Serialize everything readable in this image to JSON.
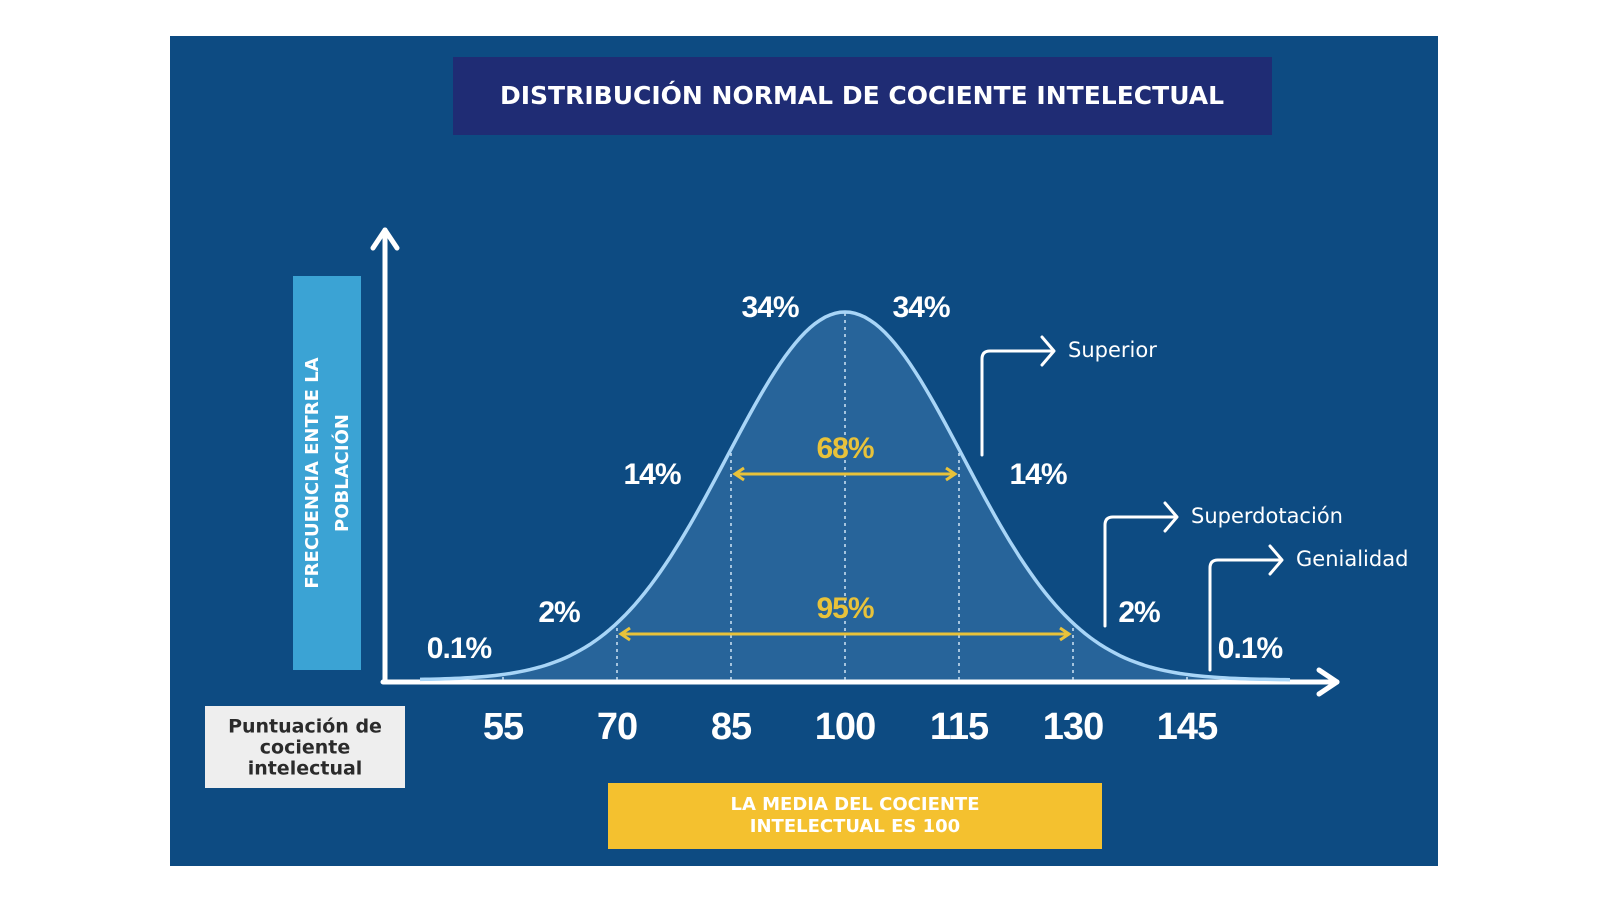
{
  "chart_data": {
    "type": "normal",
    "title": "DISTRIBUCIÓN NORMAL DE COCIENTE INTELECTUAL",
    "y_label": [
      "FRECUENCIA ENTRE LA",
      "POBLACIÓN"
    ],
    "x_label": [
      "Puntuación de",
      "cociente",
      "intelectual"
    ],
    "note": [
      "LA MEDIA DEL COCIENTE",
      "INTELECTUAL ES 100"
    ],
    "xlim": [
      40,
      165
    ],
    "xticks": [
      55,
      70,
      85,
      100,
      115,
      130,
      145
    ],
    "bands": {
      "values": [
        0.1,
        2,
        14,
        34,
        34,
        14,
        2,
        0.1
      ],
      "value_labels": [
        "0.1%",
        "2%",
        "14%",
        "34%",
        "34%",
        "14%",
        "2%",
        "0.1%"
      ]
    },
    "ranges": [
      {
        "value": 68,
        "label": "68%",
        "from": 85,
        "to": 115
      },
      {
        "value": 95,
        "label": "95%",
        "from": 70,
        "to": 130
      }
    ],
    "annotations": [
      {
        "text": "Superior",
        "x": 115
      },
      {
        "text": "Superdotación",
        "x": 130
      },
      {
        "text": "Genialidad",
        "x": 145
      }
    ]
  }
}
